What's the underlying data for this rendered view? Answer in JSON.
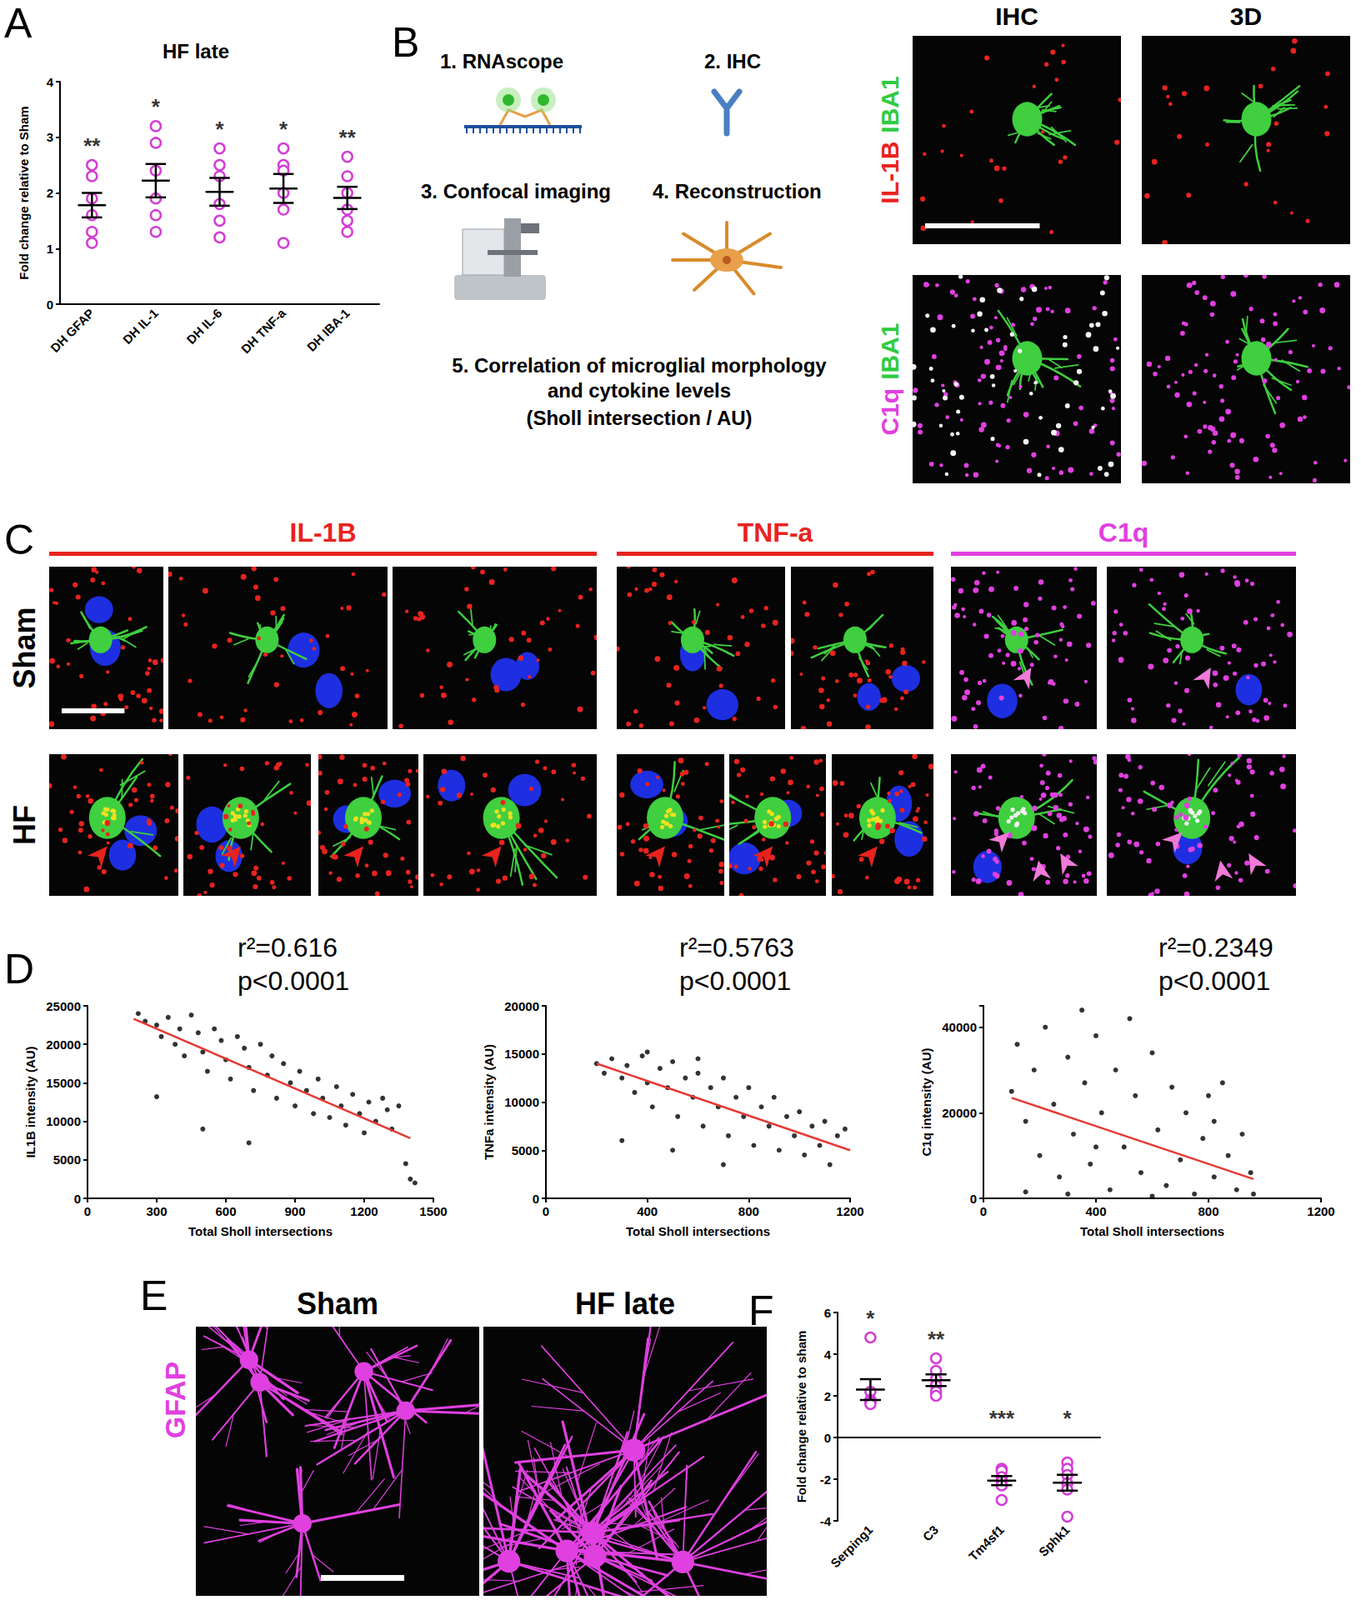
{
  "panel_labels": [
    "A",
    "B",
    "C",
    "D",
    "E",
    "F"
  ],
  "chart_data": [
    {
      "type": "dot",
      "title": "HF late",
      "categories": [
        "DH GFAP",
        "DH IL-1",
        "DH IL-6",
        "DH TNF-a",
        "DH IBA-1"
      ],
      "points": [
        [
          2.5,
          2.3,
          1.9,
          1.6,
          1.3,
          1.1
        ],
        [
          3.2,
          2.9,
          2.4,
          1.9,
          1.6,
          1.3
        ],
        [
          2.8,
          2.5,
          2.3,
          1.8,
          1.5,
          1.2
        ],
        [
          2.8,
          2.5,
          2.4,
          2.0,
          1.7,
          1.1
        ],
        [
          2.65,
          2.3,
          2.0,
          1.7,
          1.5,
          1.3
        ]
      ],
      "mean": [
        1.78,
        2.22,
        2.02,
        2.08,
        1.91
      ],
      "sem": [
        0.22,
        0.3,
        0.25,
        0.26,
        0.2
      ],
      "significance": [
        "**",
        "*",
        "*",
        "*",
        "**"
      ],
      "color": "#d23fd4",
      "marker": "open_circle",
      "ylabel": "Fold change relative to Sham",
      "ylim": [
        0,
        4
      ],
      "yticks": [
        0,
        1,
        2,
        3,
        4
      ],
      "grid": false
    },
    {
      "type": "scatter",
      "xlabel": "Total Sholl intersections",
      "ylabel": "IL1B intensity (AU)",
      "annotations": [
        "r²=0.616",
        "p<0.0001"
      ],
      "x": [
        220,
        250,
        300,
        320,
        350,
        380,
        400,
        420,
        450,
        480,
        500,
        520,
        550,
        580,
        600,
        620,
        650,
        680,
        700,
        720,
        750,
        780,
        800,
        820,
        850,
        880,
        900,
        920,
        950,
        980,
        1000,
        1020,
        1050,
        1080,
        1100,
        1120,
        1150,
        1180,
        1200,
        1220,
        1250,
        1280,
        1300,
        1320,
        1350,
        1380,
        1400,
        1420,
        300,
        700,
        500
      ],
      "values": [
        24000,
        23000,
        22500,
        21000,
        23500,
        20000,
        22000,
        18500,
        23800,
        21500,
        19000,
        16500,
        22000,
        20500,
        18000,
        15500,
        21000,
        19500,
        17000,
        14000,
        20000,
        16000,
        18500,
        13000,
        17500,
        15000,
        12000,
        16500,
        14000,
        11000,
        15500,
        13000,
        10500,
        14500,
        12000,
        9500,
        13500,
        11000,
        8500,
        12500,
        10000,
        13000,
        11500,
        9000,
        12000,
        4500,
        2500,
        2000,
        13200,
        7200,
        9000
      ],
      "color": "#000000",
      "fit": {
        "x": [
          200,
          1400
        ],
        "values": [
          23300,
          7800
        ],
        "color": "#e53935"
      },
      "xlim": [
        0,
        1500
      ],
      "xticks": [
        0,
        300,
        600,
        900,
        1200,
        1500
      ],
      "ylim": [
        0,
        25000
      ],
      "yticks": [
        0,
        5000,
        10000,
        15000,
        20000,
        25000
      ],
      "grid": false
    },
    {
      "type": "scatter",
      "xlabel": "Total Sholl intersections",
      "ylabel": "TNFa intensity (AU)",
      "annotations": [
        "r²=0.5763",
        "p<0.0001"
      ],
      "x": [
        200,
        230,
        260,
        300,
        320,
        350,
        380,
        400,
        420,
        450,
        480,
        500,
        520,
        550,
        580,
        600,
        620,
        650,
        680,
        700,
        720,
        750,
        780,
        800,
        820,
        850,
        880,
        900,
        920,
        950,
        980,
        1000,
        1020,
        1050,
        1080,
        1100,
        1120,
        1150,
        1180,
        300,
        500,
        700,
        400,
        600
      ],
      "values": [
        14000,
        13000,
        14500,
        12500,
        13800,
        11000,
        14800,
        12000,
        9500,
        13500,
        11500,
        14200,
        8500,
        12500,
        10500,
        13000,
        7500,
        11500,
        9500,
        12500,
        6500,
        10500,
        8500,
        11500,
        5500,
        9500,
        7500,
        10500,
        5000,
        8500,
        6500,
        9000,
        4500,
        7500,
        5500,
        8000,
        3500,
        6500,
        7200,
        6000,
        5000,
        3500,
        15200,
        14500
      ],
      "color": "#000000",
      "fit": {
        "x": [
          200,
          1200
        ],
        "values": [
          14000,
          5000
        ],
        "color": "#e53935"
      },
      "xlim": [
        0,
        1200
      ],
      "xticks": [
        0,
        400,
        800,
        1200
      ],
      "ylim": [
        0,
        20000
      ],
      "yticks": [
        0,
        5000,
        10000,
        15000,
        20000
      ],
      "grid": false
    },
    {
      "type": "scatter",
      "xlabel": "Total Sholl intersections",
      "ylabel": "C1q intensity (AU)",
      "annotations": [
        "r²=0.2349",
        "p<0.0001"
      ],
      "x": [
        100,
        120,
        150,
        180,
        200,
        220,
        250,
        270,
        300,
        320,
        350,
        360,
        380,
        400,
        420,
        450,
        470,
        500,
        520,
        540,
        560,
        600,
        620,
        650,
        670,
        700,
        720,
        750,
        780,
        800,
        820,
        850,
        870,
        900,
        920,
        950,
        960,
        600,
        300,
        150,
        820,
        400
      ],
      "values": [
        25000,
        36000,
        18000,
        30000,
        10000,
        40000,
        22000,
        5000,
        33000,
        15000,
        44000,
        27000,
        8000,
        38000,
        20000,
        2000,
        30000,
        12000,
        42000,
        24000,
        6000,
        34000,
        16000,
        3000,
        26000,
        9000,
        20000,
        1000,
        14000,
        24000,
        5000,
        27000,
        10000,
        2000,
        15000,
        6000,
        1000,
        500,
        1000,
        1500,
        18000,
        12000
      ],
      "color": "#000000",
      "fit": {
        "x": [
          100,
          960
        ],
        "values": [
          23500,
          4500
        ],
        "color": "#e53935"
      },
      "xlim": [
        0,
        1200
      ],
      "xticks": [
        0,
        400,
        800,
        1200
      ],
      "ylim": [
        0,
        45000
      ],
      "yticks": [
        0,
        20000,
        40000
      ],
      "grid": false
    },
    {
      "type": "dot",
      "categories": [
        "Serping1",
        "C3",
        "Tm4sf1",
        "Sphk1"
      ],
      "points": [
        [
          4.8,
          2.2,
          1.8,
          1.7,
          1.7,
          1.6
        ],
        [
          3.8,
          3.2,
          2.8,
          2.5,
          2.2,
          2.0
        ],
        [
          -1.5,
          -1.6,
          -1.9,
          -2.1,
          -2.3,
          -3.0
        ],
        [
          -1.2,
          -1.5,
          -1.8,
          -2.2,
          -2.5,
          -3.8
        ]
      ],
      "mean": [
        2.3,
        2.75,
        -2.07,
        -2.17
      ],
      "sem": [
        0.5,
        0.28,
        0.22,
        0.38
      ],
      "significance": [
        "*",
        "**",
        "***",
        "*"
      ],
      "color": "#d23fd4",
      "marker": "open_circle",
      "ylabel": "Fold change relative to sham",
      "ylim": [
        -4,
        6
      ],
      "yticks": [
        -4,
        -2,
        0,
        2,
        4,
        6
      ],
      "grid": false
    }
  ],
  "panel_b": {
    "steps": [
      "1. RNAscope",
      "2. IHC",
      "3. Confocal imaging",
      "4. Reconstruction"
    ],
    "summary": [
      "5. Correlation of microglial morphology",
      "and cytokine levels",
      "(Sholl intersection / AU)"
    ],
    "columns": [
      "IHC",
      "3D"
    ],
    "rows": [
      {
        "labels": [
          {
            "text": "IL-1B",
            "color": "#e8231f"
          },
          {
            "text": "IBA1",
            "color": "#2ecc40"
          }
        ]
      },
      {
        "labels": [
          {
            "text": "C1q",
            "color": "#e040e0"
          },
          {
            "text": "IBA1",
            "color": "#2ecc40"
          }
        ]
      }
    ]
  },
  "panel_c": {
    "groups": [
      {
        "title": "IL-1B",
        "color": "#e8231f"
      },
      {
        "title": "TNF-a",
        "color": "#e8231f"
      },
      {
        "title": "C1q",
        "color": "#e040e0"
      }
    ],
    "rows": [
      "Sham",
      "HF"
    ]
  },
  "panel_e": {
    "stain": "GFAP",
    "color": "#e040e0",
    "columns": [
      "Sham",
      "HF late"
    ]
  }
}
